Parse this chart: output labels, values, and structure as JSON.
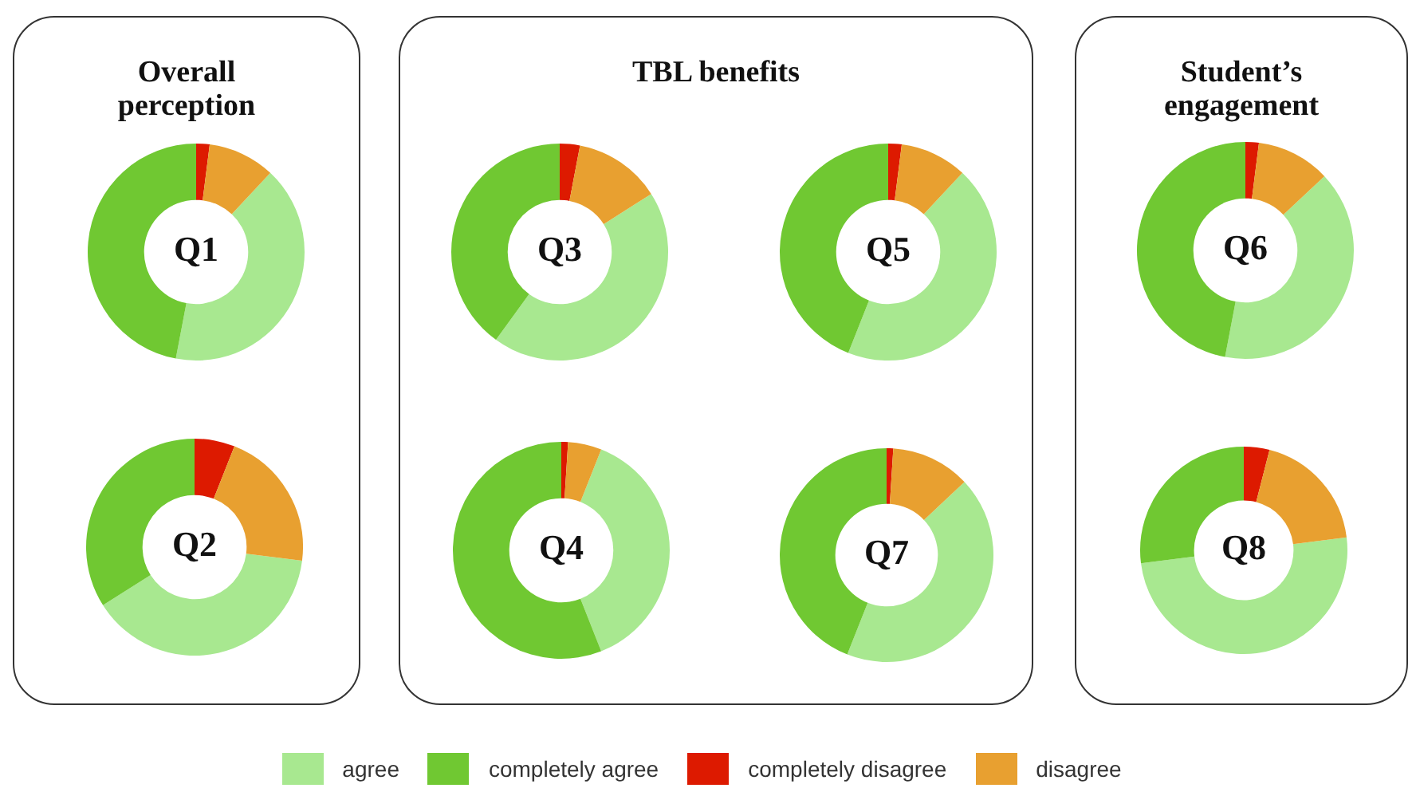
{
  "chart_data": [
    {
      "type": "donut",
      "title": "Q1",
      "subtitle": "Overall perception",
      "categories": [
        "agree",
        "completely agree",
        "completely disagree",
        "disagree"
      ],
      "values": [
        41,
        47,
        2,
        10
      ],
      "colors": [
        "#a8e890",
        "#70c832",
        "#dd1a00",
        "#e8a030"
      ],
      "legend": "bottom"
    },
    {
      "type": "donut",
      "title": "Q2",
      "categories": [
        null,
        null,
        null,
        null
      ],
      "values": [
        39,
        34,
        6,
        21
      ],
      "colors": [
        "#a8e890",
        "#70c832",
        "#dd1a00",
        "#e8a030"
      ]
    },
    {
      "type": "donut",
      "title": "Q3",
      "subtitle": "TBL benefits",
      "categories": [
        null,
        null,
        null,
        null
      ],
      "values": [
        44,
        40,
        3,
        13
      ],
      "colors": [
        "#a8e890",
        "#70c832",
        "#dd1a00",
        "#e8a030"
      ]
    },
    {
      "type": "donut",
      "title": "Q4",
      "categories": [
        null,
        null,
        null,
        null
      ],
      "values": [
        38,
        56,
        1,
        5
      ],
      "colors": [
        "#a8e890",
        "#70c832",
        "#dd1a00",
        "#e8a030"
      ]
    },
    {
      "type": "donut",
      "title": "Q5",
      "categories": [
        null,
        null,
        null,
        null
      ],
      "values": [
        44,
        44,
        2,
        10
      ],
      "colors": [
        "#a8e890",
        "#70c832",
        "#dd1a00",
        "#e8a030"
      ]
    },
    {
      "type": "donut",
      "title": "Q6",
      "subtitle": "Student’s engagement",
      "categories": [
        null,
        null,
        null,
        null
      ],
      "values": [
        40,
        47,
        2,
        11
      ],
      "colors": [
        "#a8e890",
        "#70c832",
        "#dd1a00",
        "#e8a030"
      ]
    },
    {
      "type": "donut",
      "title": "Q7",
      "categories": [
        null,
        null,
        null,
        null
      ],
      "values": [
        43,
        44,
        1,
        12
      ],
      "colors": [
        "#a8e890",
        "#70c832",
        "#dd1a00",
        "#e8a030"
      ]
    },
    {
      "type": "donut",
      "title": "Q8",
      "categories": [
        null,
        null,
        null,
        null
      ],
      "values": [
        50,
        27,
        4,
        19
      ],
      "colors": [
        "#a8e890",
        "#70c832",
        "#dd1a00",
        "#e8a030"
      ]
    }
  ]
}
